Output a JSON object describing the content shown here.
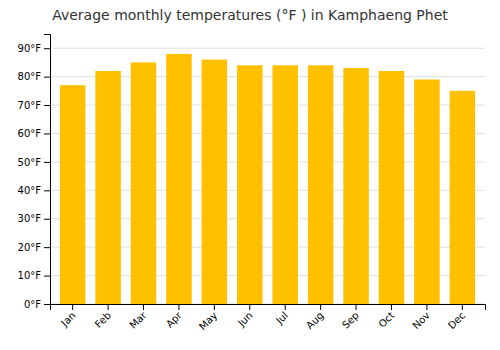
{
  "chart_data": {
    "type": "bar",
    "title": "Average monthly temperatures (°F ) in Kamphaeng Phet",
    "categories": [
      "Jan",
      "Feb",
      "Mar",
      "Apr",
      "May",
      "Jun",
      "Jul",
      "Aug",
      "Sep",
      "Oct",
      "Nov",
      "Dec"
    ],
    "values": [
      77,
      82,
      85,
      88,
      86,
      84,
      84,
      84,
      83,
      82,
      79,
      75
    ],
    "color": "#FFC000",
    "ylim": [
      0,
      95
    ],
    "yticks": [
      {
        "value": 0,
        "label": "0°F"
      },
      {
        "value": 10,
        "label": "10°F"
      },
      {
        "value": 20,
        "label": "20°F"
      },
      {
        "value": 30,
        "label": "30°F"
      },
      {
        "value": 40,
        "label": "40°F"
      },
      {
        "value": 50,
        "label": "50°F"
      },
      {
        "value": 60,
        "label": "60°F"
      },
      {
        "value": 70,
        "label": "70°F"
      },
      {
        "value": 80,
        "label": "80°F"
      },
      {
        "value": 90,
        "label": "90°F"
      }
    ],
    "grid": true
  }
}
